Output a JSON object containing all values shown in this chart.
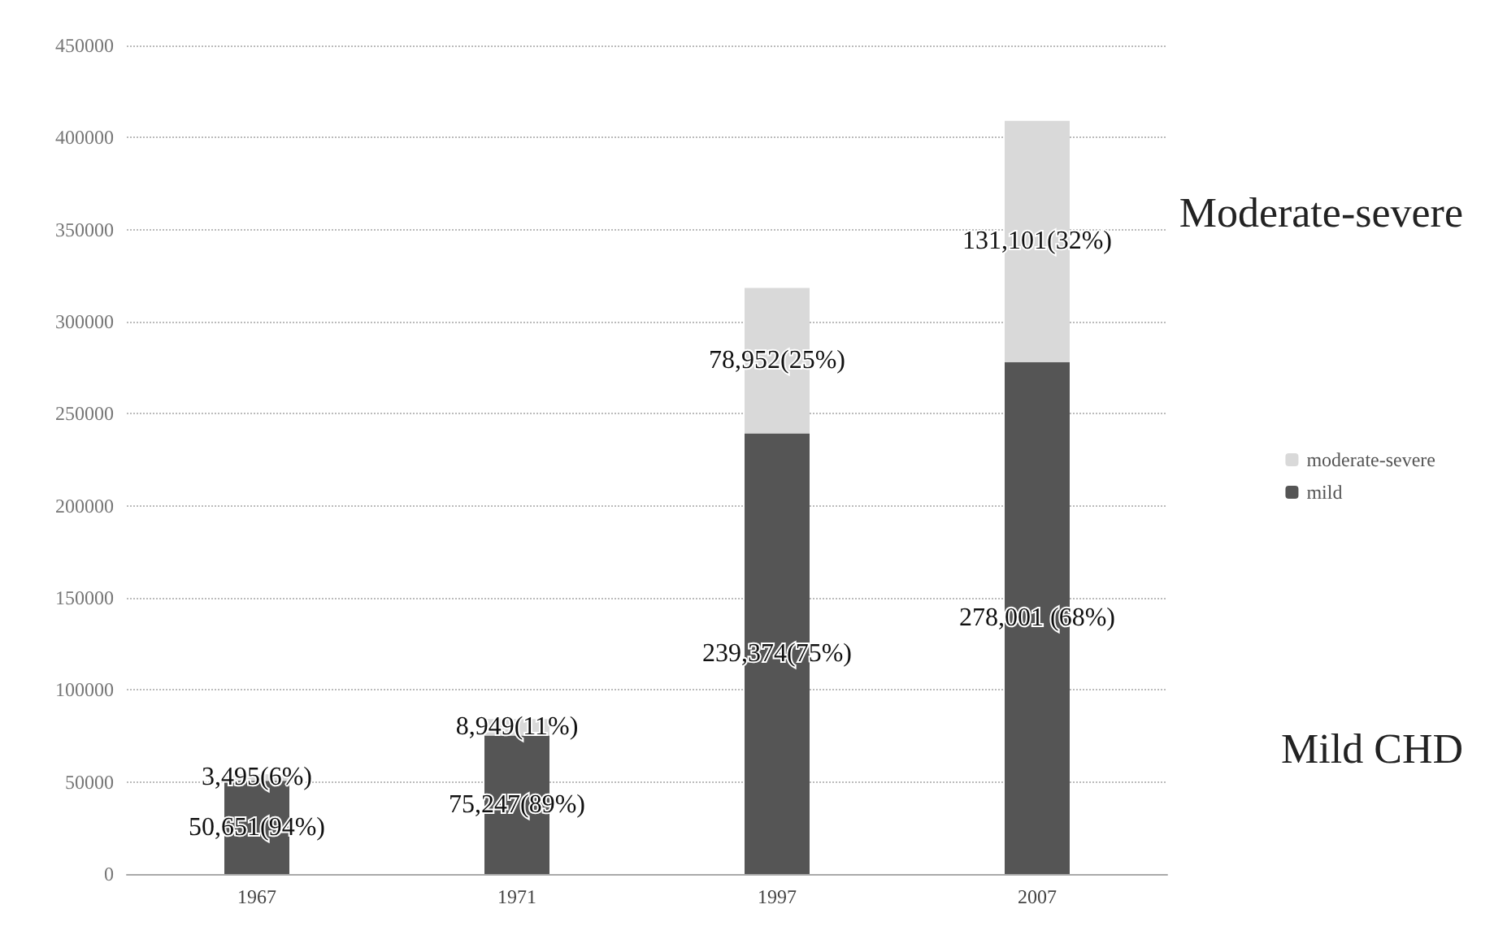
{
  "chart_data": {
    "type": "bar",
    "stacked": true,
    "categories": [
      "1967",
      "1971",
      "1997",
      "2007"
    ],
    "series": [
      {
        "name": "mild",
        "color": "#555555",
        "values": [
          50651,
          75247,
          239374,
          278001
        ],
        "value_labels": [
          "50,651(94%)",
          "75,247(89%)",
          "239,374(75%)",
          "278,001 (68%)"
        ]
      },
      {
        "name": "moderate-severe",
        "color": "#d9d9d9",
        "values": [
          3495,
          8949,
          78952,
          131101
        ],
        "value_labels": [
          "3,495(6%)",
          "8,949(11%)",
          "78,952(25%)",
          "131,101(32%)"
        ]
      }
    ],
    "ylim": [
      0,
      450000
    ],
    "yticks": [
      0,
      50000,
      100000,
      150000,
      200000,
      250000,
      300000,
      350000,
      400000,
      450000
    ],
    "grid": "y",
    "legend": "right",
    "annotations": [
      "Moderate-severe",
      "Mild CHD"
    ]
  }
}
